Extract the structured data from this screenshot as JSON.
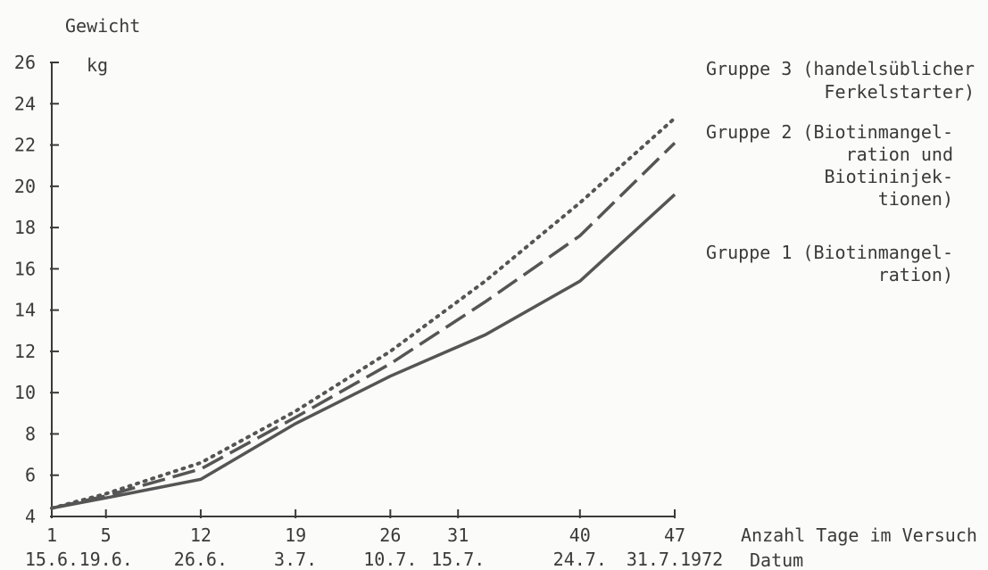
{
  "chart_data": {
    "type": "line",
    "ylabel": "Gewicht",
    "yunit": "kg",
    "xlabel": "Anzahl Tage im Versuch",
    "x2label": "Datum",
    "ylim": [
      4,
      26
    ],
    "yticks": [
      4,
      6,
      8,
      10,
      12,
      14,
      16,
      18,
      20,
      22,
      24,
      26
    ],
    "xlim": [
      1,
      47
    ],
    "xticks": [
      1,
      5,
      12,
      19,
      26,
      31,
      40,
      47
    ],
    "dates": [
      "15.6.",
      "19.6.",
      "26.6.",
      "3.7.",
      "10.7.",
      "15.7.",
      "24.7.",
      "31.7.1972"
    ],
    "grid": false,
    "series": [
      {
        "name": "Gruppe 1",
        "legend": [
          "Gruppe 1 (Biotinmangel-",
          "ration)"
        ],
        "style": "solid",
        "x": [
          1,
          5,
          12,
          19,
          26,
          33,
          40,
          47
        ],
        "values": [
          4.4,
          4.9,
          5.8,
          8.5,
          10.8,
          12.8,
          15.4,
          19.6
        ]
      },
      {
        "name": "Gruppe 2",
        "legend": [
          "Gruppe 2 (Biotinmangel-",
          "ration und",
          "Biotininjek-",
          "tionen)"
        ],
        "style": "dashed",
        "x": [
          1,
          5,
          12,
          19,
          26,
          33,
          40,
          47
        ],
        "values": [
          4.4,
          5.0,
          6.3,
          8.8,
          11.4,
          14.4,
          17.6,
          22.1
        ]
      },
      {
        "name": "Gruppe 3",
        "legend": [
          "Gruppe 3 (handelsüblicher",
          "Ferkelstarter)"
        ],
        "style": "dotted",
        "x": [
          1,
          5,
          12,
          19,
          26,
          33,
          40,
          47
        ],
        "values": [
          4.4,
          5.1,
          6.6,
          9.1,
          12.0,
          15.4,
          19.2,
          23.3
        ]
      }
    ]
  }
}
